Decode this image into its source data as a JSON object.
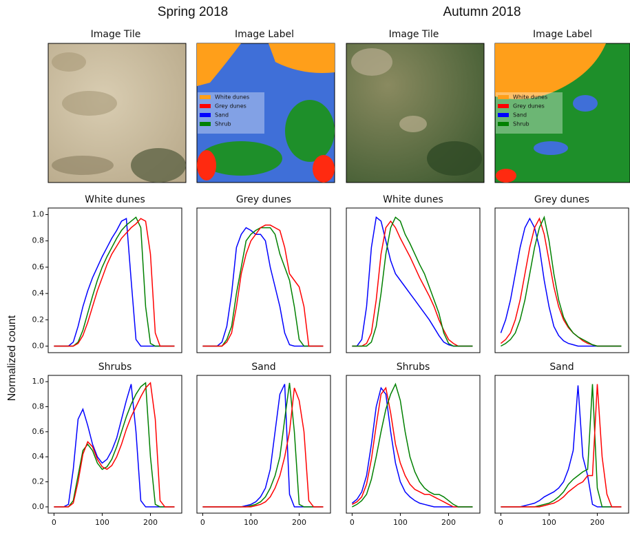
{
  "headers": [
    "Spring 2018",
    "Autumn 2018"
  ],
  "y_label": "Normalized count",
  "image_panels": [
    {
      "title": "Image Tile"
    },
    {
      "title": "Image Label",
      "legend": [
        {
          "label": "White dunes",
          "color": "#ff9f1a"
        },
        {
          "label": "Grey dunes",
          "color": "#ff0000"
        },
        {
          "label": "Sand",
          "color": "#0000ff"
        },
        {
          "label": "Shrub",
          "color": "#008000"
        }
      ]
    },
    {
      "title": "Image Tile"
    },
    {
      "title": "Image Label",
      "legend": [
        {
          "label": "White dunes",
          "color": "#ff9f1a"
        },
        {
          "label": "Grey dunes",
          "color": "#ff0000"
        },
        {
          "label": "Sand",
          "color": "#0000ff"
        },
        {
          "label": "Shrub",
          "color": "#008000"
        }
      ]
    }
  ],
  "chart_data": [
    {
      "type": "line",
      "title": "White dunes",
      "xlim": [
        -12,
        265
      ],
      "ylim": [
        -0.05,
        1.05
      ],
      "yticks": [
        {
          "value": 0,
          "label": "0.0"
        },
        {
          "value": 0.2,
          "label": "0.2"
        },
        {
          "value": 0.4,
          "label": "0.4"
        },
        {
          "value": 0.6,
          "label": "0.6"
        },
        {
          "value": 0.8,
          "label": "0.8"
        },
        {
          "value": 1,
          "label": "1.0"
        }
      ],
      "x": [
        0,
        10,
        20,
        30,
        40,
        50,
        60,
        70,
        80,
        90,
        100,
        110,
        120,
        130,
        140,
        150,
        160,
        170,
        180,
        190,
        200,
        210,
        220,
        230,
        240,
        250
      ],
      "series": [
        {
          "color": "#0000ff",
          "values": [
            0,
            0,
            0,
            0,
            0.03,
            0.15,
            0.3,
            0.42,
            0.52,
            0.6,
            0.68,
            0.75,
            0.82,
            0.88,
            0.95,
            0.97,
            0.5,
            0.05,
            0,
            0,
            0,
            0,
            0,
            0,
            0,
            0
          ]
        },
        {
          "color": "#008000",
          "values": [
            0,
            0,
            0,
            0,
            0,
            0.03,
            0.12,
            0.25,
            0.38,
            0.5,
            0.6,
            0.68,
            0.75,
            0.82,
            0.88,
            0.92,
            0.95,
            0.98,
            0.9,
            0.3,
            0.02,
            0,
            0,
            0,
            0,
            0
          ]
        },
        {
          "color": "#ff0000",
          "values": [
            0,
            0,
            0,
            0,
            0,
            0.02,
            0.08,
            0.18,
            0.3,
            0.42,
            0.52,
            0.62,
            0.7,
            0.76,
            0.82,
            0.86,
            0.9,
            0.93,
            0.97,
            0.95,
            0.7,
            0.1,
            0,
            0,
            0,
            0
          ]
        }
      ]
    },
    {
      "type": "line",
      "title": "Grey dunes",
      "xlim": [
        -12,
        265
      ],
      "ylim": [
        -0.05,
        1.05
      ],
      "x": [
        0,
        10,
        20,
        30,
        40,
        50,
        60,
        70,
        80,
        90,
        100,
        110,
        120,
        130,
        140,
        150,
        160,
        170,
        180,
        190,
        200,
        210,
        220,
        230,
        240,
        250
      ],
      "series": [
        {
          "color": "#0000ff",
          "values": [
            0,
            0,
            0,
            0,
            0.03,
            0.15,
            0.4,
            0.75,
            0.85,
            0.9,
            0.88,
            0.85,
            0.85,
            0.8,
            0.6,
            0.45,
            0.3,
            0.1,
            0.01,
            0,
            0,
            0,
            0,
            0,
            0,
            0
          ]
        },
        {
          "color": "#008000",
          "values": [
            0,
            0,
            0,
            0,
            0,
            0.05,
            0.15,
            0.4,
            0.6,
            0.8,
            0.85,
            0.88,
            0.9,
            0.9,
            0.9,
            0.85,
            0.7,
            0.6,
            0.5,
            0.3,
            0.05,
            0,
            0,
            0,
            0,
            0
          ]
        },
        {
          "color": "#ff0000",
          "values": [
            0,
            0,
            0,
            0,
            0,
            0.03,
            0.1,
            0.3,
            0.55,
            0.7,
            0.8,
            0.85,
            0.9,
            0.92,
            0.92,
            0.9,
            0.88,
            0.75,
            0.55,
            0.5,
            0.45,
            0.3,
            0,
            0,
            0,
            0
          ]
        }
      ]
    },
    {
      "type": "line",
      "title": "White dunes",
      "xlim": [
        -12,
        265
      ],
      "ylim": [
        -0.05,
        1.05
      ],
      "x": [
        0,
        10,
        20,
        30,
        40,
        50,
        60,
        70,
        80,
        90,
        100,
        110,
        120,
        130,
        140,
        150,
        160,
        170,
        180,
        190,
        200,
        210,
        220,
        230,
        240,
        250
      ],
      "series": [
        {
          "color": "#0000ff",
          "values": [
            0,
            0,
            0.05,
            0.3,
            0.75,
            0.98,
            0.95,
            0.8,
            0.65,
            0.55,
            0.5,
            0.45,
            0.4,
            0.35,
            0.3,
            0.25,
            0.2,
            0.14,
            0.08,
            0.03,
            0.01,
            0,
            0,
            0,
            0,
            0
          ]
        },
        {
          "color": "#ff0000",
          "values": [
            0,
            0,
            0,
            0.02,
            0.1,
            0.35,
            0.7,
            0.9,
            0.95,
            0.9,
            0.82,
            0.75,
            0.68,
            0.6,
            0.52,
            0.45,
            0.38,
            0.3,
            0.2,
            0.12,
            0.05,
            0.02,
            0,
            0,
            0,
            0
          ]
        },
        {
          "color": "#008000",
          "values": [
            0,
            0,
            0,
            0,
            0.03,
            0.15,
            0.4,
            0.7,
            0.9,
            0.98,
            0.95,
            0.85,
            0.78,
            0.7,
            0.62,
            0.55,
            0.45,
            0.35,
            0.25,
            0.1,
            0.02,
            0,
            0,
            0,
            0,
            0
          ]
        }
      ]
    },
    {
      "type": "line",
      "title": "Grey dunes",
      "xlim": [
        -12,
        265
      ],
      "ylim": [
        -0.05,
        1.05
      ],
      "x": [
        0,
        10,
        20,
        30,
        40,
        50,
        60,
        70,
        80,
        90,
        100,
        110,
        120,
        130,
        140,
        150,
        160,
        170,
        180,
        190,
        200,
        210,
        220,
        230,
        240,
        250
      ],
      "series": [
        {
          "color": "#0000ff",
          "values": [
            0.1,
            0.2,
            0.35,
            0.55,
            0.75,
            0.9,
            0.97,
            0.9,
            0.75,
            0.5,
            0.3,
            0.15,
            0.08,
            0.04,
            0.02,
            0.01,
            0,
            0,
            0,
            0,
            0,
            0,
            0,
            0,
            0,
            0
          ]
        },
        {
          "color": "#ff0000",
          "values": [
            0.02,
            0.05,
            0.1,
            0.2,
            0.35,
            0.55,
            0.75,
            0.9,
            0.97,
            0.85,
            0.65,
            0.45,
            0.3,
            0.2,
            0.14,
            0.1,
            0.07,
            0.04,
            0.02,
            0.01,
            0,
            0,
            0,
            0,
            0,
            0
          ]
        },
        {
          "color": "#008000",
          "values": [
            0,
            0.02,
            0.05,
            0.1,
            0.2,
            0.35,
            0.55,
            0.75,
            0.9,
            0.98,
            0.8,
            0.55,
            0.35,
            0.22,
            0.15,
            0.1,
            0.07,
            0.05,
            0.03,
            0.01,
            0,
            0,
            0,
            0,
            0,
            0
          ]
        }
      ]
    },
    {
      "type": "line",
      "title": "Shrubs",
      "xlim": [
        -12,
        265
      ],
      "ylim": [
        -0.05,
        1.05
      ],
      "yticks": [
        {
          "value": 0,
          "label": "0.0"
        },
        {
          "value": 0.2,
          "label": "0.2"
        },
        {
          "value": 0.4,
          "label": "0.4"
        },
        {
          "value": 0.6,
          "label": "0.6"
        },
        {
          "value": 0.8,
          "label": "0.8"
        },
        {
          "value": 1,
          "label": "1.0"
        }
      ],
      "xticks": [
        0,
        100,
        200
      ],
      "x": [
        0,
        10,
        20,
        30,
        40,
        50,
        60,
        70,
        80,
        90,
        100,
        110,
        120,
        130,
        140,
        150,
        160,
        170,
        180,
        190,
        200,
        210,
        220,
        230,
        240,
        250
      ],
      "series": [
        {
          "color": "#0000ff",
          "values": [
            0,
            0,
            0,
            0.02,
            0.3,
            0.7,
            0.78,
            0.65,
            0.5,
            0.4,
            0.35,
            0.38,
            0.45,
            0.55,
            0.7,
            0.85,
            0.98,
            0.6,
            0.05,
            0,
            0,
            0,
            0,
            0,
            0,
            0
          ]
        },
        {
          "color": "#008000",
          "values": [
            0,
            0,
            0,
            0,
            0.05,
            0.25,
            0.45,
            0.5,
            0.45,
            0.35,
            0.3,
            0.32,
            0.38,
            0.48,
            0.6,
            0.72,
            0.82,
            0.9,
            0.96,
            0.99,
            0.4,
            0.02,
            0,
            0,
            0,
            0
          ]
        },
        {
          "color": "#ff0000",
          "values": [
            0,
            0,
            0,
            0,
            0.03,
            0.2,
            0.42,
            0.52,
            0.48,
            0.38,
            0.32,
            0.3,
            0.33,
            0.4,
            0.5,
            0.62,
            0.72,
            0.8,
            0.88,
            0.95,
            0.99,
            0.7,
            0.05,
            0,
            0,
            0
          ]
        }
      ]
    },
    {
      "type": "line",
      "title": "Sand",
      "xlim": [
        -12,
        265
      ],
      "ylim": [
        -0.05,
        1.05
      ],
      "xticks": [
        0,
        100,
        200
      ],
      "x": [
        0,
        10,
        20,
        30,
        40,
        50,
        60,
        70,
        80,
        90,
        100,
        110,
        120,
        130,
        140,
        150,
        160,
        170,
        180,
        190,
        200,
        210,
        220,
        230,
        240,
        250
      ],
      "series": [
        {
          "color": "#0000ff",
          "values": [
            0,
            0,
            0,
            0,
            0,
            0,
            0,
            0,
            0,
            0.01,
            0.02,
            0.04,
            0.08,
            0.15,
            0.3,
            0.6,
            0.9,
            0.98,
            0.1,
            0,
            0,
            0,
            0,
            0,
            0,
            0
          ]
        },
        {
          "color": "#008000",
          "values": [
            0,
            0,
            0,
            0,
            0,
            0,
            0,
            0,
            0,
            0,
            0.01,
            0.02,
            0.04,
            0.08,
            0.15,
            0.25,
            0.4,
            0.7,
            0.99,
            0.6,
            0.02,
            0,
            0,
            0,
            0,
            0
          ]
        },
        {
          "color": "#ff0000",
          "values": [
            0,
            0,
            0,
            0,
            0,
            0,
            0,
            0,
            0,
            0,
            0,
            0.01,
            0.02,
            0.04,
            0.08,
            0.15,
            0.25,
            0.4,
            0.6,
            0.95,
            0.85,
            0.6,
            0.05,
            0,
            0,
            0
          ]
        }
      ]
    },
    {
      "type": "line",
      "title": "Shrubs",
      "xlim": [
        -12,
        265
      ],
      "ylim": [
        -0.05,
        1.05
      ],
      "xticks": [
        0,
        100,
        200
      ],
      "x": [
        0,
        10,
        20,
        30,
        40,
        50,
        60,
        70,
        80,
        90,
        100,
        110,
        120,
        130,
        140,
        150,
        160,
        170,
        180,
        190,
        200,
        210,
        220,
        230,
        240,
        250
      ],
      "series": [
        {
          "color": "#0000ff",
          "values": [
            0.03,
            0.06,
            0.12,
            0.25,
            0.5,
            0.8,
            0.95,
            0.9,
            0.6,
            0.35,
            0.2,
            0.12,
            0.08,
            0.05,
            0.03,
            0.02,
            0.01,
            0,
            0,
            0,
            0,
            0,
            0,
            0,
            0,
            0
          ]
        },
        {
          "color": "#ff0000",
          "values": [
            0.02,
            0.04,
            0.08,
            0.18,
            0.38,
            0.65,
            0.9,
            0.95,
            0.75,
            0.5,
            0.35,
            0.25,
            0.18,
            0.14,
            0.12,
            0.1,
            0.1,
            0.08,
            0.06,
            0.04,
            0.02,
            0,
            0,
            0,
            0,
            0
          ]
        },
        {
          "color": "#008000",
          "values": [
            0,
            0.02,
            0.05,
            0.1,
            0.22,
            0.4,
            0.6,
            0.78,
            0.9,
            0.98,
            0.85,
            0.6,
            0.4,
            0.28,
            0.2,
            0.15,
            0.12,
            0.1,
            0.1,
            0.08,
            0.05,
            0.02,
            0,
            0,
            0,
            0
          ]
        }
      ]
    },
    {
      "type": "line",
      "title": "Sand",
      "xlim": [
        -12,
        265
      ],
      "ylim": [
        -0.05,
        1.05
      ],
      "xticks": [
        0,
        100,
        200
      ],
      "x": [
        0,
        10,
        20,
        30,
        40,
        50,
        60,
        70,
        80,
        90,
        100,
        110,
        120,
        130,
        140,
        150,
        160,
        170,
        180,
        190,
        200,
        210,
        220,
        230,
        240,
        250
      ],
      "series": [
        {
          "color": "#0000ff",
          "values": [
            0,
            0,
            0,
            0,
            0,
            0.01,
            0.02,
            0.03,
            0.05,
            0.08,
            0.1,
            0.12,
            0.15,
            0.2,
            0.3,
            0.45,
            0.97,
            0.4,
            0.25,
            0.02,
            0,
            0,
            0,
            0,
            0,
            0
          ]
        },
        {
          "color": "#008000",
          "values": [
            0,
            0,
            0,
            0,
            0,
            0,
            0,
            0,
            0.01,
            0.02,
            0.03,
            0.05,
            0.08,
            0.12,
            0.18,
            0.22,
            0.25,
            0.28,
            0.3,
            0.98,
            0.15,
            0,
            0,
            0,
            0,
            0
          ]
        },
        {
          "color": "#ff0000",
          "values": [
            0,
            0,
            0,
            0,
            0,
            0,
            0,
            0,
            0,
            0.01,
            0.02,
            0.03,
            0.05,
            0.08,
            0.12,
            0.15,
            0.18,
            0.2,
            0.25,
            0.25,
            0.98,
            0.4,
            0.1,
            0,
            0,
            0
          ]
        }
      ]
    }
  ]
}
